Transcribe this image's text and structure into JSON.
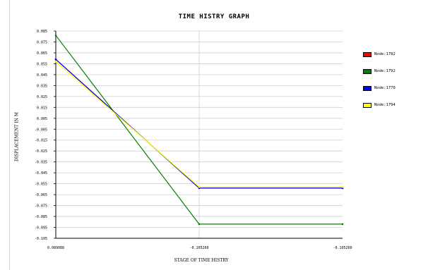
{
  "chart_data": {
    "type": "line",
    "title": "TIME HISTRY GRAPH",
    "xlabel": "STAGE OF TIME HISTRY",
    "ylabel": "DISPLACEMENT IN M",
    "x_tick_labels": [
      "0.089088",
      "-0.105260",
      "-0.105260"
    ],
    "y_ticks": [
      "0.085",
      "0.075",
      "0.065",
      "0.055",
      "0.045",
      "0.035",
      "0.025",
      "0.015",
      "0.005",
      "-0.005",
      "-0.015",
      "-0.025",
      "-0.035",
      "-0.045",
      "-0.055",
      "-0.065",
      "-0.075",
      "-0.085",
      "-0.095",
      "-0.105"
    ],
    "ylim": [
      -0.105,
      0.085
    ],
    "grid": true,
    "legend_position": "right",
    "series": [
      {
        "name": "Node:1782",
        "color": "#ff0000",
        "values": [
          0.059,
          -0.059,
          -0.059
        ]
      },
      {
        "name": "Node:1792",
        "color": "#008000",
        "values": [
          0.081,
          -0.092,
          -0.092
        ]
      },
      {
        "name": "Node:1770",
        "color": "#0000ff",
        "values": [
          0.059,
          -0.059,
          -0.059
        ]
      },
      {
        "name": "Node:1794",
        "color": "#ffff00",
        "values": [
          0.057,
          -0.058,
          -0.058
        ]
      }
    ]
  }
}
